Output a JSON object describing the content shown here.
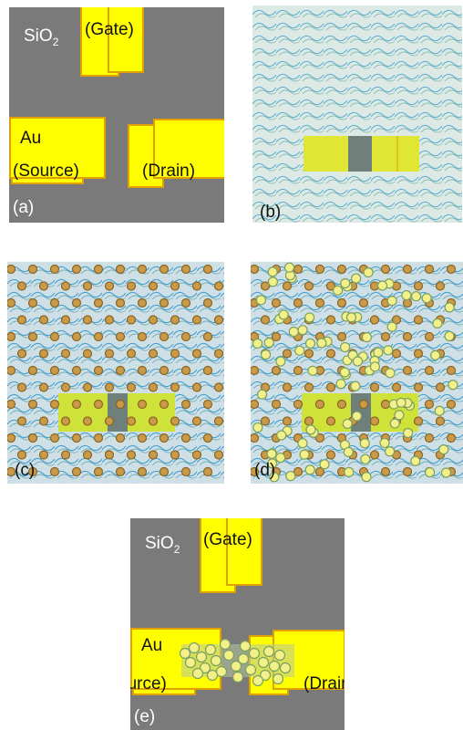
{
  "colors": {
    "substrate": "#7a7a7a",
    "electrode_gold": "#ffff00",
    "electrode_edge": "#e0a000",
    "polymer_bg": "#d7e4ea",
    "polymer_line": "#3aa0cc",
    "channel_green": "#cfe23a",
    "channel_dark": "#6f7f7a",
    "particle_brown": "#c89a4a",
    "particle_yellow": "#f3f08a"
  },
  "panels": {
    "a": {
      "label": "(a)",
      "substrate": "SiO",
      "substrate_sub": "2",
      "gate": "(Gate)",
      "metal": "Au",
      "source": "(Source)",
      "drain": "(Drain)"
    },
    "b": {
      "label": "(b)"
    },
    "c": {
      "label": "(c)"
    },
    "d": {
      "label": "(d)"
    },
    "e": {
      "label": "(e)",
      "substrate": "SiO",
      "substrate_sub": "2",
      "gate": "(Gate)",
      "metal": "Au",
      "source": "(Source)",
      "drain": "(Drain)"
    }
  }
}
